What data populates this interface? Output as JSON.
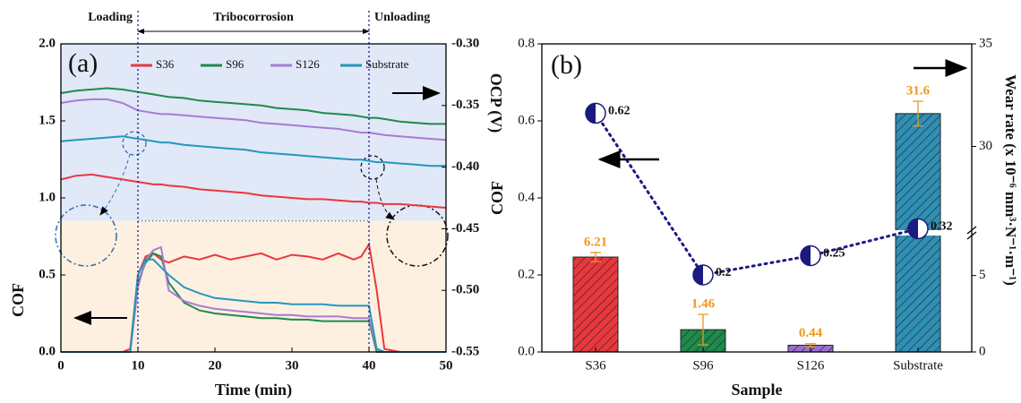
{
  "chart_data": [
    {
      "type": "line",
      "panel": "(a)",
      "xlabel": "Time (min)",
      "ylabel": "COF",
      "y2label": "OCP (V)",
      "annotations": [
        "Loading",
        "Tribocorrosion",
        "Unloading"
      ],
      "vlines": [
        10,
        40
      ],
      "legend": "top",
      "x": [
        0,
        2,
        4,
        6,
        8,
        9,
        10,
        11,
        12,
        13,
        14,
        16,
        18,
        20,
        22,
        24,
        26,
        28,
        30,
        32,
        34,
        36,
        38,
        39,
        40,
        41,
        42,
        44,
        46,
        48,
        50
      ],
      "xlim": [
        0,
        50
      ],
      "xticks": [
        0,
        10,
        20,
        30,
        40,
        50
      ],
      "ylim": [
        0,
        2
      ],
      "yticks": [
        {
          "value": 0,
          "label": "0.0"
        },
        0.5,
        {
          "value": 1,
          "label": "1.0"
        },
        1.5,
        {
          "value": 2,
          "label": "2.0"
        }
      ],
      "y2lim": [
        -0.55,
        -0.3
      ],
      "y2ticks": [
        -0.55,
        {
          "value": -0.5,
          "label": "-0.50"
        },
        -0.45,
        {
          "value": -0.4,
          "label": "-0.40"
        },
        -0.35,
        {
          "value": -0.3,
          "label": "-0.30"
        }
      ],
      "series": [
        {
          "name": "S36",
          "color": "#e8383d",
          "values": [
            0,
            0,
            0,
            0,
            0,
            0.02,
            0.5,
            0.62,
            0.64,
            0.6,
            0.58,
            0.62,
            0.6,
            0.63,
            0.6,
            0.62,
            0.64,
            0.6,
            0.63,
            0.62,
            0.6,
            0.64,
            0.6,
            0.62,
            0.7,
            0.4,
            0.02,
            0,
            0,
            0,
            0
          ]
        },
        {
          "name": "S96",
          "color": "#1e8a4c",
          "values": [
            0,
            0,
            0,
            0,
            0,
            0,
            0.45,
            0.58,
            0.64,
            0.62,
            0.45,
            0.32,
            0.27,
            0.25,
            0.24,
            0.23,
            0.22,
            0.22,
            0.21,
            0.21,
            0.2,
            0.2,
            0.2,
            0.2,
            0.2,
            0,
            0,
            0,
            0,
            0,
            0
          ]
        },
        {
          "name": "S126",
          "color": "#a77bd6",
          "values": [
            0,
            0,
            0,
            0,
            0,
            0,
            0.42,
            0.6,
            0.66,
            0.68,
            0.4,
            0.33,
            0.3,
            0.28,
            0.27,
            0.26,
            0.25,
            0.24,
            0.24,
            0.23,
            0.23,
            0.23,
            0.22,
            0.22,
            0.22,
            0.02,
            0,
            0,
            0,
            0,
            0
          ]
        },
        {
          "name": "Substrate",
          "color": "#2596be",
          "values": [
            0,
            0,
            0,
            0,
            0,
            0,
            0.5,
            0.6,
            0.6,
            0.55,
            0.5,
            0.42,
            0.38,
            0.35,
            0.34,
            0.33,
            0.32,
            0.32,
            0.31,
            0.31,
            0.31,
            0.3,
            0.3,
            0.3,
            0.3,
            0.02,
            0,
            0,
            0,
            0,
            0
          ]
        },
        {
          "name": "S36",
          "axis": "y2",
          "color": "#e8383d",
          "values": [
            -0.41,
            -0.407,
            -0.406,
            -0.408,
            -0.41,
            -0.411,
            -0.412,
            -0.413,
            -0.414,
            -0.414,
            -0.415,
            -0.416,
            -0.418,
            -0.419,
            -0.42,
            -0.421,
            -0.423,
            -0.424,
            -0.425,
            -0.426,
            -0.426,
            -0.427,
            -0.428,
            -0.428,
            -0.429,
            -0.429,
            -0.43,
            -0.43,
            -0.431,
            -0.432,
            -0.433
          ]
        },
        {
          "name": "S96",
          "axis": "y2",
          "color": "#1e8a4c",
          "values": [
            -0.34,
            -0.338,
            -0.337,
            -0.336,
            -0.337,
            -0.338,
            -0.339,
            -0.34,
            -0.341,
            -0.342,
            -0.343,
            -0.344,
            -0.346,
            -0.347,
            -0.348,
            -0.349,
            -0.35,
            -0.352,
            -0.353,
            -0.354,
            -0.356,
            -0.357,
            -0.358,
            -0.359,
            -0.36,
            -0.36,
            -0.361,
            -0.363,
            -0.364,
            -0.365,
            -0.365
          ]
        },
        {
          "name": "S126",
          "axis": "y2",
          "color": "#a77bd6",
          "values": [
            -0.348,
            -0.346,
            -0.345,
            -0.345,
            -0.348,
            -0.351,
            -0.354,
            -0.355,
            -0.356,
            -0.357,
            -0.357,
            -0.358,
            -0.359,
            -0.36,
            -0.361,
            -0.362,
            -0.364,
            -0.365,
            -0.366,
            -0.367,
            -0.368,
            -0.369,
            -0.371,
            -0.372,
            -0.372,
            -0.373,
            -0.374,
            -0.375,
            -0.376,
            -0.377,
            -0.378
          ]
        },
        {
          "name": "Substrate",
          "axis": "y2",
          "color": "#2596be",
          "values": [
            -0.379,
            -0.378,
            -0.377,
            -0.376,
            -0.375,
            -0.376,
            -0.377,
            -0.378,
            -0.379,
            -0.38,
            -0.38,
            -0.382,
            -0.383,
            -0.384,
            -0.385,
            -0.386,
            -0.388,
            -0.389,
            -0.39,
            -0.391,
            -0.392,
            -0.393,
            -0.394,
            -0.394,
            -0.395,
            -0.396,
            -0.396,
            -0.397,
            -0.398,
            -0.399,
            -0.399
          ]
        }
      ]
    },
    {
      "type": "bar",
      "panel": "(b)",
      "xlabel": "Sample",
      "ylabel": "COF",
      "y2label": "Wear rate (x 10⁻⁶ mm³·N⁻¹·m⁻¹)",
      "categories": [
        "S36",
        "S96",
        "S126",
        "Substrate"
      ],
      "ylim": [
        0,
        0.8
      ],
      "yticks": [
        {
          "value": 0,
          "label": "0.0"
        },
        0.2,
        0.4,
        0.6,
        0.8
      ],
      "y2lim": [
        0,
        35
      ],
      "y2ticks": [
        0,
        5,
        30,
        35
      ],
      "y2break": [
        7.5,
        26
      ],
      "series": [
        {
          "type": "bar",
          "axis": "y2",
          "colors": [
            "#e8383d",
            "#1e8a4c",
            "#9b6fd0",
            "#2f8fb5"
          ],
          "label_color": "#f0961e",
          "values": [
            6.21,
            1.46,
            0.44,
            31.6
          ],
          "errors": [
            0.3,
            1.0,
            0.1,
            0.6
          ]
        },
        {
          "type": "line",
          "axis": "y",
          "color": "#1a1a80",
          "values": [
            0.62,
            0.2,
            0.25,
            0.32
          ]
        }
      ]
    }
  ]
}
